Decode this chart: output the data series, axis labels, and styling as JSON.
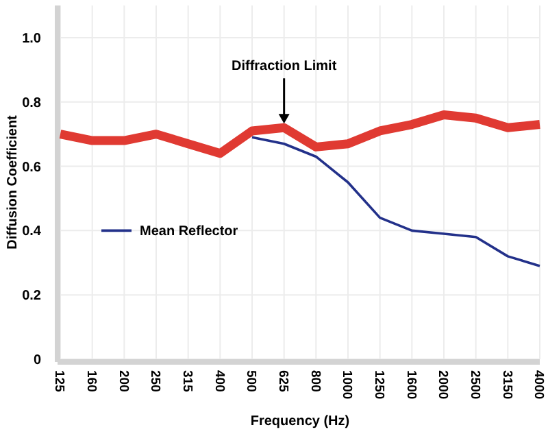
{
  "chart_data": {
    "type": "line",
    "xlabel": "Frequency (Hz)",
    "ylabel": "Diffusion Coefficient",
    "categories": [
      "125",
      "160",
      "200",
      "250",
      "315",
      "400",
      "500",
      "625",
      "800",
      "1000",
      "1250",
      "1600",
      "2000",
      "2500",
      "3150",
      "4000"
    ],
    "series": [
      {
        "color": "#e03a32",
        "values": [
          0.7,
          0.68,
          0.68,
          0.7,
          0.67,
          0.64,
          0.71,
          0.72,
          0.66,
          0.67,
          0.71,
          0.73,
          0.76,
          0.75,
          0.72,
          0.73
        ]
      },
      {
        "name": "Mean Reflector",
        "color": "#23318a",
        "values": [
          null,
          null,
          null,
          null,
          null,
          null,
          0.69,
          0.67,
          0.63,
          0.55,
          0.44,
          0.4,
          0.39,
          0.38,
          0.32,
          0.29
        ]
      }
    ],
    "ylim": [
      0,
      1.1
    ],
    "yticks": [
      0,
      {
        "value": 0.2,
        "label": "0.2"
      },
      {
        "value": 0.4,
        "label": "0.4"
      },
      {
        "value": 0.6,
        "label": "0.6"
      },
      {
        "value": 0.8,
        "label": "0.8"
      },
      {
        "value": 1,
        "label": "1.0"
      }
    ],
    "grid": true,
    "legend": "left",
    "marker": "none",
    "annotations": [
      {
        "text": "Diffraction Limit",
        "x": "625",
        "y": 0.72
      }
    ]
  }
}
